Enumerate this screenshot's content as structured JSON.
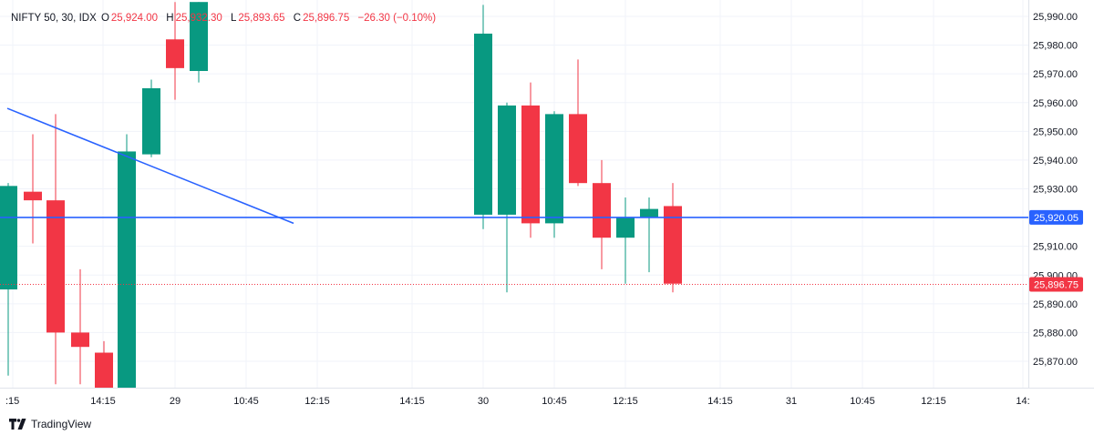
{
  "header": {
    "symbol": "NIFTY 50, 30, IDX",
    "o_label": "O",
    "o_value": "25,924.00",
    "h_label": "H",
    "h_value": "25,932.30",
    "l_label": "L",
    "l_value": "25,893.65",
    "c_label": "C",
    "c_value": "25,896.75",
    "change": "−26.30 (−0.10%)"
  },
  "brand": {
    "name": "TradingView"
  },
  "colors": {
    "up": "#089981",
    "down": "#f23645",
    "trendline": "#2962ff",
    "grid": "#f0f3fa",
    "text": "#131722"
  },
  "chart_data": {
    "type": "candlestick",
    "y_axis_ticks": [
      "25,990.00",
      "25,980.00",
      "25,970.00",
      "25,960.00",
      "25,950.00",
      "25,940.00",
      "25,930.00",
      "25,920.00",
      "25,910.00",
      "25,900.00",
      "25,890.00",
      "25,880.00",
      "25,870.00"
    ],
    "y_range": [
      25863,
      25993
    ],
    "x_axis_ticks": [
      ":15",
      "14:15",
      "29",
      "10:45",
      "12:15",
      "14:15",
      "30",
      "10:45",
      "12:15",
      "14:15",
      "31",
      "10:45",
      "12:15",
      "14:"
    ],
    "candles": [
      {
        "o": 25895,
        "h": 25932,
        "l": 25865,
        "c": 25931
      },
      {
        "o": 25929,
        "h": 25949,
        "l": 25911,
        "c": 25926
      },
      {
        "o": 25926,
        "h": 25956,
        "l": 25862,
        "c": 25880
      },
      {
        "o": 25880,
        "h": 25902,
        "l": 25862,
        "c": 25875
      },
      {
        "o": 25873,
        "h": 25877,
        "l": 25860,
        "c": 25860
      },
      {
        "o": 25860,
        "h": 25949,
        "l": 25858,
        "c": 25943
      },
      {
        "o": 25942,
        "h": 25968,
        "l": 25941,
        "c": 25965
      },
      {
        "o": 25982,
        "h": 25995,
        "l": 25961,
        "c": 25972
      },
      {
        "o": 25971,
        "h": 25995,
        "l": 25967,
        "c": 25995
      },
      {
        "o": 25921,
        "h": 25994,
        "l": 25916,
        "c": 25984
      },
      {
        "o": 25921,
        "h": 25960,
        "l": 25894,
        "c": 25959
      },
      {
        "o": 25959,
        "h": 25967,
        "l": 25913,
        "c": 25918
      },
      {
        "o": 25918,
        "h": 25957,
        "l": 25913,
        "c": 25956
      },
      {
        "o": 25956,
        "h": 25975,
        "l": 25931,
        "c": 25932
      },
      {
        "o": 25932,
        "h": 25940,
        "l": 25902,
        "c": 25913
      },
      {
        "o": 25913,
        "h": 25927,
        "l": 25897,
        "c": 25920
      },
      {
        "o": 25920,
        "h": 25927,
        "l": 25901,
        "c": 25923
      },
      {
        "o": 25924,
        "h": 25932,
        "l": 25894,
        "c": 25897
      }
    ],
    "horizontal_line": {
      "value": 25920.05,
      "label": "25,920.05"
    },
    "last_price": {
      "value": 25896.75,
      "label": "25,896.75"
    },
    "trendline": {
      "from": 25958,
      "to": 25918
    }
  }
}
